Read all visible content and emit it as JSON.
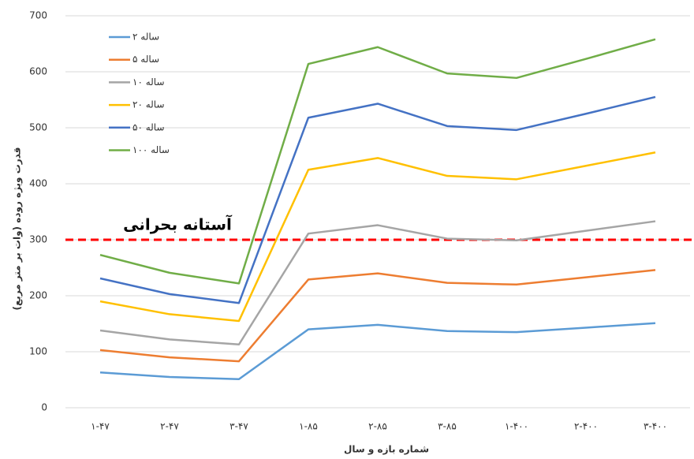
{
  "chart_data": {
    "type": "line",
    "y_label": "قدرت ویژه روده (وات بر متر مربع)",
    "x_label": "شماره بازه و سال",
    "categories": [
      "۱-۴۷",
      "۲-۴۷",
      "۳-۴۷",
      "۱-۸۵",
      "۲-۸۵",
      "۳-۸۵",
      "۱-۴۰۰",
      "۲-۴۰۰",
      "۳-۴۰۰"
    ],
    "series": [
      {
        "name": "۲ ساله",
        "color": "#5b9bd5",
        "values": [
          63,
          55,
          51,
          140,
          148,
          137,
          135,
          143,
          151
        ]
      },
      {
        "name": "۵ ساله",
        "color": "#ed7d31",
        "values": [
          103,
          90,
          83,
          229,
          240,
          223,
          220,
          233,
          246
        ]
      },
      {
        "name": "۱۰ ساله",
        "color": "#a5a5a5",
        "values": [
          138,
          122,
          113,
          311,
          326,
          302,
          299,
          316,
          333
        ]
      },
      {
        "name": "۲۰ ساله",
        "color": "#ffc000",
        "values": [
          190,
          167,
          155,
          425,
          446,
          414,
          408,
          432,
          456
        ]
      },
      {
        "name": "۵۰ ساله",
        "color": "#4472c4",
        "values": [
          231,
          203,
          187,
          518,
          543,
          503,
          496,
          525,
          555
        ]
      },
      {
        "name": "۱۰۰ ساله",
        "color": "#70ad47",
        "values": [
          273,
          241,
          222,
          614,
          644,
          597,
          589,
          623,
          658
        ]
      }
    ],
    "threshold": {
      "value": 300,
      "label": "آستانه بحرانی",
      "color": "#ff0000"
    },
    "ylim": [
      0,
      700
    ],
    "yticks": [
      0,
      100,
      200,
      300,
      400,
      500,
      600,
      700
    ],
    "grid": true,
    "legend": "top-left"
  }
}
